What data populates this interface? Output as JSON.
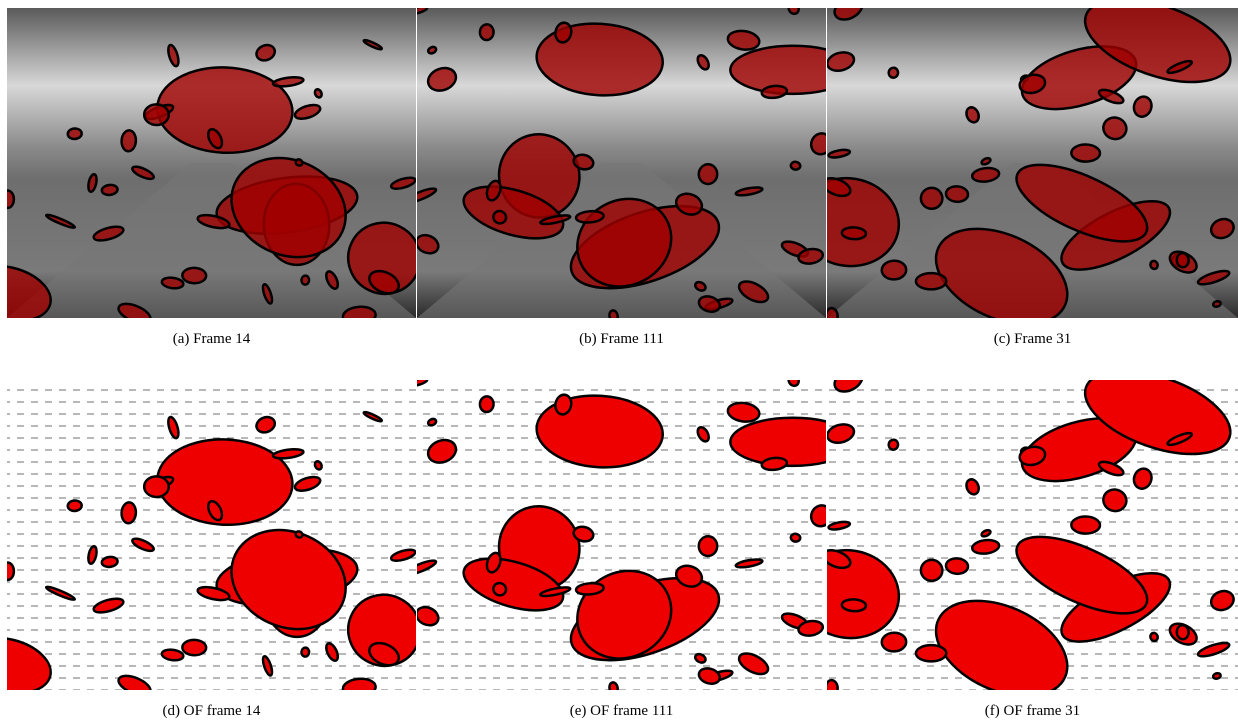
{
  "figure": {
    "panels": [
      {
        "caption": "(a) Frame 14"
      },
      {
        "caption": "(b) Frame 111"
      },
      {
        "caption": "(c) Frame 31"
      },
      {
        "caption": "(d) OF frame 14"
      },
      {
        "caption": "(e) OF frame 111"
      },
      {
        "caption": "(f) OF frame 31"
      }
    ]
  }
}
